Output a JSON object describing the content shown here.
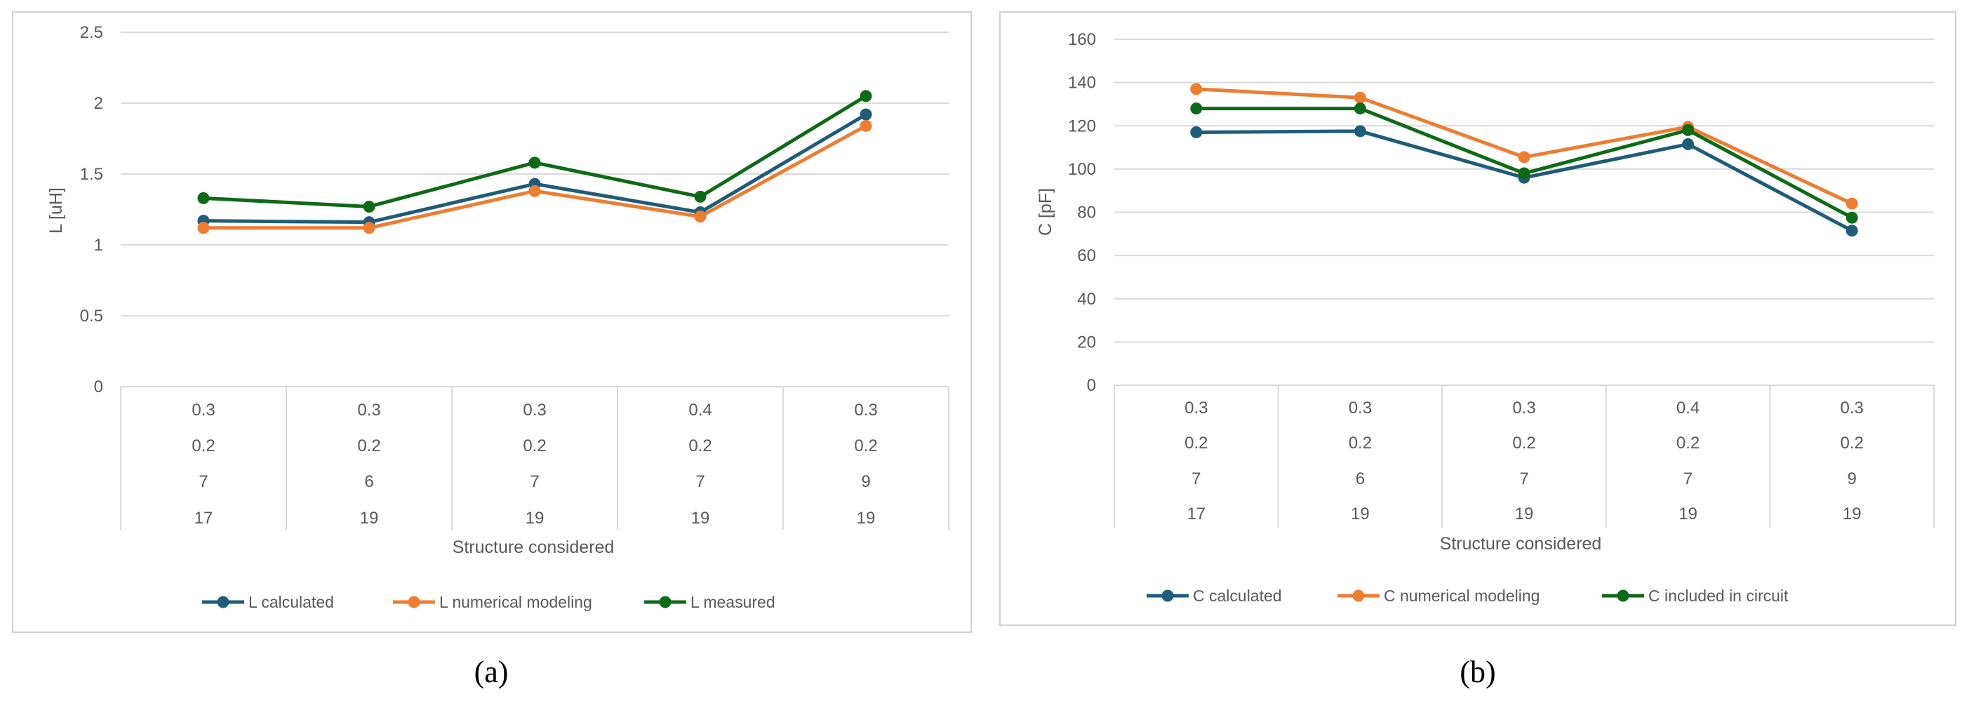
{
  "colors": {
    "L calculated": "#1f5c7a",
    "L numerical  modeling": "#ed7d31",
    "L measured": "#0e6a16",
    "grid": "#d9d9d9",
    "frame": "#d0d0d0"
  },
  "chart_data": [
    {
      "type": "line",
      "panel_label": "a",
      "title": "",
      "xlabel": "Structure considered",
      "ylabel": "L [uH]",
      "ylim": [
        0,
        2.5
      ],
      "yticks": [
        "0",
        "0.5",
        "1",
        "1.5",
        "2",
        "2.5"
      ],
      "categories": [
        [
          "0.3",
          "0.2",
          "7",
          "17"
        ],
        [
          "0.3",
          "0.2",
          "6",
          "19"
        ],
        [
          "0.3",
          "0.2",
          "7",
          "19"
        ],
        [
          "0.4",
          "0.2",
          "7",
          "19"
        ],
        [
          "0.3",
          "0.2",
          "9",
          "19"
        ]
      ],
      "series": [
        {
          "name": "L calculated",
          "color": "#1f5c7a",
          "values": [
            1.17,
            1.16,
            1.43,
            1.23,
            1.92
          ]
        },
        {
          "name": "L numerical  modeling",
          "color": "#ed7d31",
          "values": [
            1.12,
            1.12,
            1.38,
            1.2,
            1.84
          ]
        },
        {
          "name": "L measured",
          "color": "#0e6a16",
          "values": [
            1.33,
            1.27,
            1.58,
            1.34,
            2.05
          ]
        }
      ],
      "grid": true,
      "legend": "bottom"
    },
    {
      "type": "line",
      "panel_label": "b",
      "title": "",
      "xlabel": "Structure considered",
      "ylabel": "C [pF]",
      "ylim": [
        0,
        160
      ],
      "yticks": [
        "0",
        "20",
        "40",
        "60",
        "80",
        "100",
        "120",
        "140",
        "160"
      ],
      "categories": [
        [
          "0.3",
          "0.2",
          "7",
          "17"
        ],
        [
          "0.3",
          "0.2",
          "6",
          "19"
        ],
        [
          "0.3",
          "0.2",
          "7",
          "19"
        ],
        [
          "0.4",
          "0.2",
          "7",
          "19"
        ],
        [
          "0.3",
          "0.2",
          "9",
          "19"
        ]
      ],
      "series": [
        {
          "name": "C calculated",
          "color": "#1f5c7a",
          "values": [
            117,
            117.5,
            96,
            111.5,
            71.5
          ]
        },
        {
          "name": "C numerical  modeling",
          "color": "#ed7d31",
          "values": [
            137,
            133,
            105.5,
            119.5,
            84
          ]
        },
        {
          "name": "C included  in circuit",
          "color": "#0e6a16",
          "values": [
            128,
            128,
            98,
            118,
            77.5
          ]
        }
      ],
      "grid": true,
      "legend": "bottom"
    }
  ],
  "captions": [
    "(a)",
    "(b)"
  ]
}
